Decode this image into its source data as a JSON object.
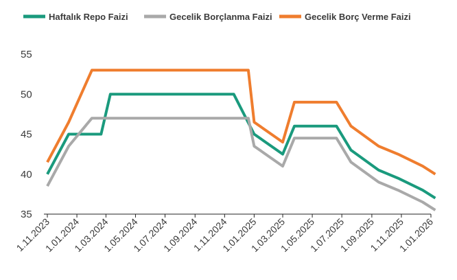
{
  "chart_data": {
    "type": "line",
    "title": "",
    "xlabel": "",
    "ylabel": "",
    "ylim": [
      35,
      55
    ],
    "yticks": [
      35,
      40,
      45,
      50,
      55
    ],
    "grid": false,
    "legend_position": "top",
    "x_tick_labels": [
      "1.11.2023",
      "1.01.2024",
      "1.03.2024",
      "1.05.2024",
      "1.07.2024",
      "1.09.2024",
      "1.11.2024",
      "1.01.2025",
      "1.03.2025",
      "1.05.2025",
      "1.07.2025",
      "1.09.2025",
      "1.11.2025",
      "1.01.2026"
    ],
    "series": [
      {
        "name": "Haftalık Repo Faizi",
        "color": "#1a9a7d",
        "points": [
          [
            "2023-11-01",
            40
          ],
          [
            "2023-12-15",
            45
          ],
          [
            "2024-02-20",
            45
          ],
          [
            "2024-03-10",
            50
          ],
          [
            "2024-11-20",
            50
          ],
          [
            "2025-01-01",
            45
          ],
          [
            "2025-03-01",
            42.5
          ],
          [
            "2025-03-25",
            46
          ],
          [
            "2025-06-20",
            46
          ],
          [
            "2025-07-20",
            43
          ],
          [
            "2025-09-15",
            40.5
          ],
          [
            "2025-10-25",
            39.5
          ],
          [
            "2025-12-15",
            38
          ],
          [
            "2026-01-10",
            37
          ]
        ]
      },
      {
        "name": "Gecelik Borçlanma Faizi",
        "color": "#a9a9a9",
        "points": [
          [
            "2023-11-01",
            38.5
          ],
          [
            "2023-12-15",
            43.5
          ],
          [
            "2024-02-01",
            47
          ],
          [
            "2024-12-20",
            47
          ],
          [
            "2025-01-01",
            43.5
          ],
          [
            "2025-03-01",
            41
          ],
          [
            "2025-03-25",
            44.5
          ],
          [
            "2025-06-20",
            44.5
          ],
          [
            "2025-07-20",
            41.5
          ],
          [
            "2025-09-15",
            39
          ],
          [
            "2025-10-25",
            38
          ],
          [
            "2025-12-15",
            36.5
          ],
          [
            "2026-01-10",
            35.5
          ]
        ]
      },
      {
        "name": "Gecelik Borç Verme Faizi",
        "color": "#ef7d2e",
        "points": [
          [
            "2023-11-01",
            41.5
          ],
          [
            "2023-12-15",
            46.5
          ],
          [
            "2024-02-01",
            53
          ],
          [
            "2024-12-20",
            53
          ],
          [
            "2025-01-01",
            46.5
          ],
          [
            "2025-03-01",
            44
          ],
          [
            "2025-03-25",
            49
          ],
          [
            "2025-06-20",
            49
          ],
          [
            "2025-07-20",
            46
          ],
          [
            "2025-09-15",
            43.5
          ],
          [
            "2025-10-25",
            42.5
          ],
          [
            "2025-12-15",
            41
          ],
          [
            "2026-01-10",
            40
          ]
        ]
      }
    ]
  }
}
